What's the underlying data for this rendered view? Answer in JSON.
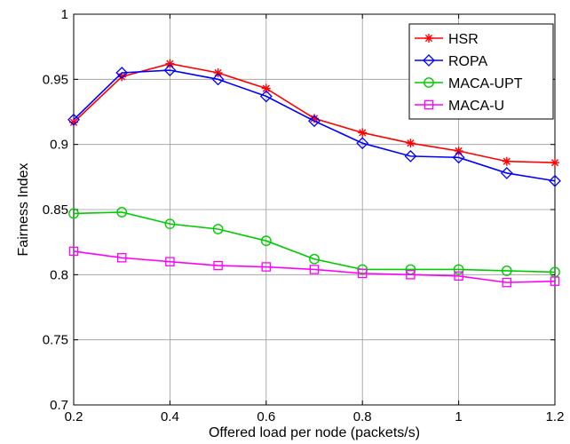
{
  "chart_data": {
    "type": "line",
    "xlabel": "Offered load per node (packets/s)",
    "ylabel": "Fairness Index",
    "xlim": [
      0.2,
      1.2
    ],
    "ylim": [
      0.7,
      1.0
    ],
    "grid": true,
    "legend_position": "top-right",
    "xticks": [
      0.2,
      0.4,
      0.6,
      0.8,
      1.0,
      1.2
    ],
    "xtick_labels": [
      "0.2",
      "0.4",
      "0.6",
      "0.8",
      "1",
      "1.2"
    ],
    "yticks": [
      0.7,
      0.75,
      0.8,
      0.85,
      0.9,
      0.95,
      1.0
    ],
    "ytick_labels": [
      "0.7",
      "0.75",
      "0.8",
      "0.85",
      "0.9",
      "0.95",
      "1"
    ],
    "x": [
      0.2,
      0.3,
      0.4,
      0.5,
      0.6,
      0.7,
      0.8,
      0.9,
      1.0,
      1.1,
      1.2
    ],
    "series": [
      {
        "name": "HSR",
        "color": "#ff0000",
        "marker": "asterisk",
        "values": [
          0.917,
          0.952,
          0.962,
          0.955,
          0.943,
          0.92,
          0.909,
          0.901,
          0.895,
          0.887,
          0.886
        ]
      },
      {
        "name": "ROPA",
        "color": "#0000ff",
        "marker": "diamond",
        "values": [
          0.919,
          0.955,
          0.957,
          0.95,
          0.937,
          0.918,
          0.901,
          0.891,
          0.89,
          0.878,
          0.872
        ]
      },
      {
        "name": "MACA-UPT",
        "color": "#00cc00",
        "marker": "circle",
        "values": [
          0.847,
          0.848,
          0.839,
          0.835,
          0.826,
          0.812,
          0.804,
          0.804,
          0.804,
          0.803,
          0.802
        ]
      },
      {
        "name": "MACA-U",
        "color": "#ff00ff",
        "marker": "square",
        "values": [
          0.818,
          0.813,
          0.81,
          0.807,
          0.806,
          0.804,
          0.801,
          0.8,
          0.799,
          0.794,
          0.795
        ]
      }
    ]
  }
}
